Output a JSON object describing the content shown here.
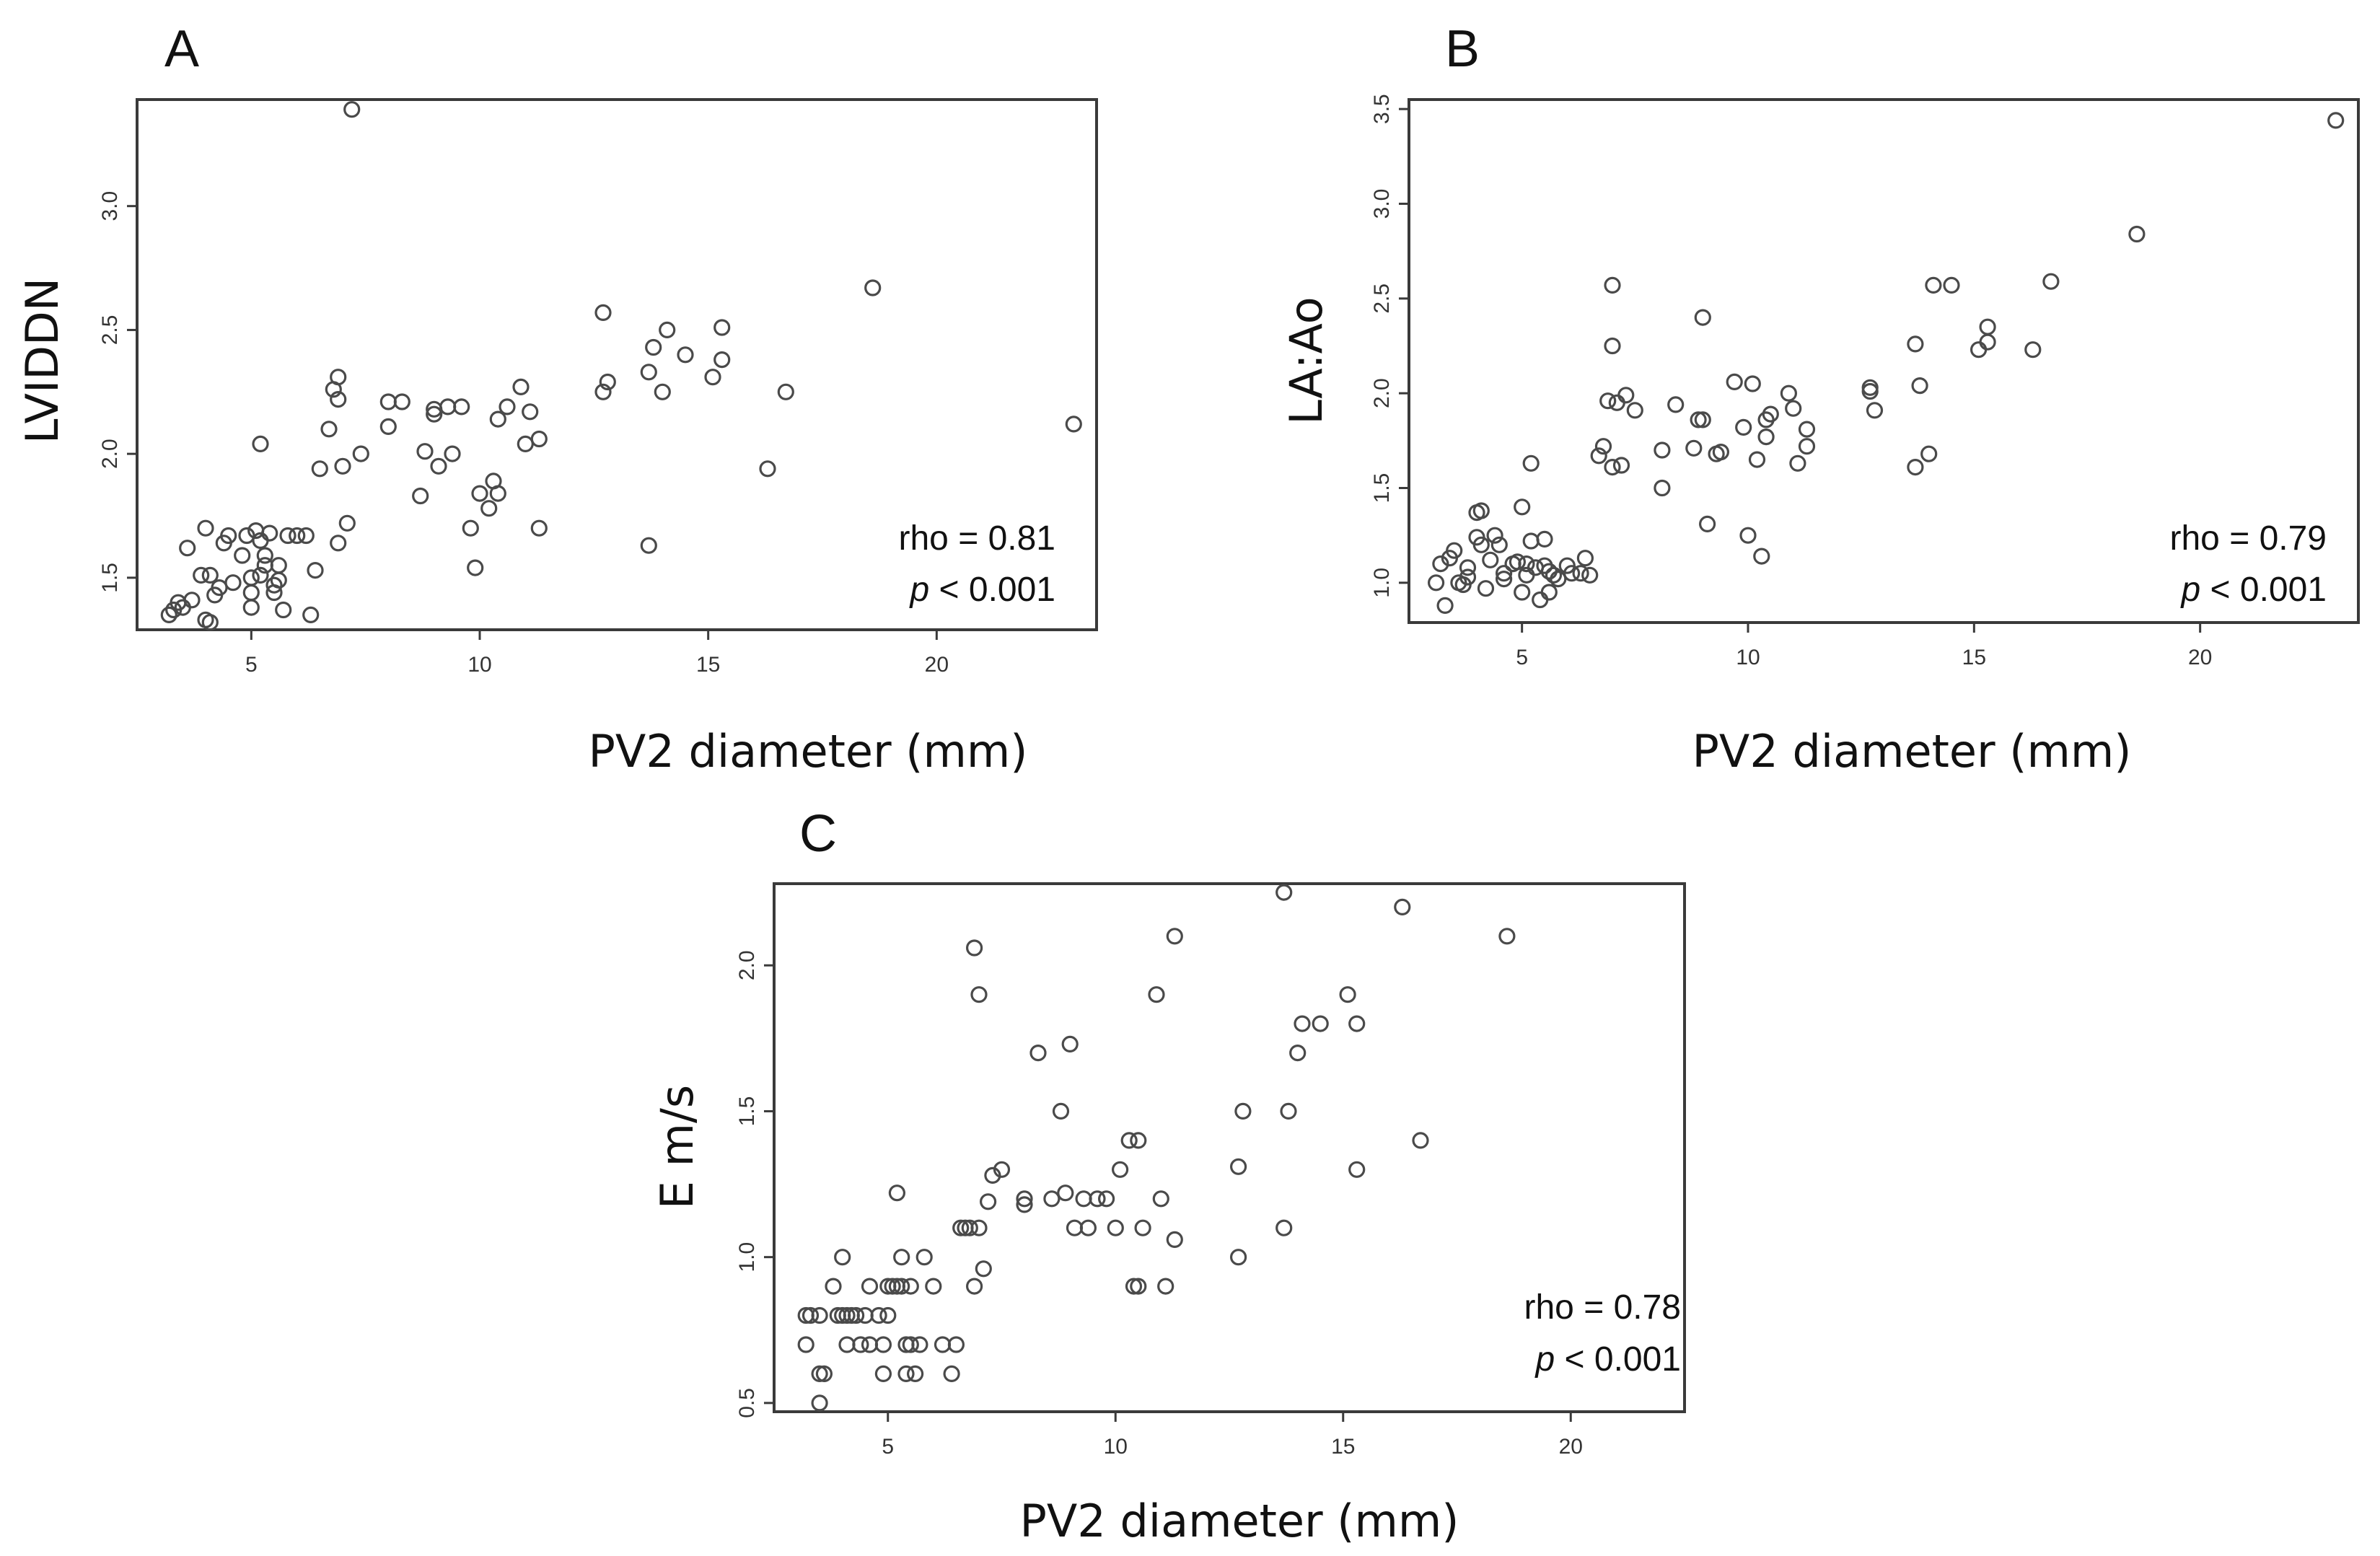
{
  "chart_data": [
    {
      "type": "scatter",
      "panel_label": "A",
      "xlabel": "PV2 diameter (mm)",
      "ylabel": "LVIDDN",
      "xlim": [
        2.5,
        23.5
      ],
      "ylim": [
        1.29,
        3.43
      ],
      "xticks": [
        5,
        10,
        15,
        20
      ],
      "yticks": [
        1.5,
        2.0,
        2.5,
        3.0
      ],
      "ytick_labels": [
        "1.5",
        "2.0",
        "2.5",
        "3.0"
      ],
      "annotation": {
        "rho": "rho = 0.81",
        "p_symbol": "p",
        "p_rest": " < 0.001"
      },
      "points": [
        [
          3.2,
          1.35
        ],
        [
          3.3,
          1.37
        ],
        [
          3.4,
          1.4
        ],
        [
          3.5,
          1.38
        ],
        [
          3.7,
          1.41
        ],
        [
          3.6,
          1.62
        ],
        [
          3.9,
          1.51
        ],
        [
          4.0,
          1.33
        ],
        [
          4.1,
          1.32
        ],
        [
          4.0,
          1.7
        ],
        [
          4.1,
          1.51
        ],
        [
          4.2,
          1.43
        ],
        [
          4.3,
          1.46
        ],
        [
          4.4,
          1.64
        ],
        [
          4.5,
          1.67
        ],
        [
          4.6,
          1.48
        ],
        [
          4.8,
          1.59
        ],
        [
          4.9,
          1.67
        ],
        [
          5.0,
          1.38
        ],
        [
          5.0,
          1.44
        ],
        [
          5.0,
          1.5
        ],
        [
          5.1,
          1.69
        ],
        [
          5.2,
          1.65
        ],
        [
          5.2,
          1.51
        ],
        [
          5.3,
          1.59
        ],
        [
          5.3,
          1.55
        ],
        [
          5.4,
          1.68
        ],
        [
          5.5,
          1.47
        ],
        [
          5.5,
          1.44
        ],
        [
          5.6,
          1.49
        ],
        [
          5.6,
          1.55
        ],
        [
          5.7,
          1.37
        ],
        [
          5.8,
          1.67
        ],
        [
          6.0,
          1.67
        ],
        [
          6.2,
          1.67
        ],
        [
          6.3,
          1.35
        ],
        [
          6.4,
          1.53
        ],
        [
          6.5,
          1.94
        ],
        [
          6.7,
          2.1
        ],
        [
          6.8,
          2.26
        ],
        [
          6.9,
          2.31
        ],
        [
          6.9,
          2.22
        ],
        [
          6.9,
          1.64
        ],
        [
          7.0,
          1.95
        ],
        [
          7.1,
          1.72
        ],
        [
          7.2,
          3.39
        ],
        [
          5.2,
          2.04
        ],
        [
          7.4,
          2.0
        ],
        [
          8.0,
          2.11
        ],
        [
          8.0,
          2.21
        ],
        [
          8.3,
          2.21
        ],
        [
          8.7,
          1.83
        ],
        [
          8.8,
          2.01
        ],
        [
          9.0,
          2.16
        ],
        [
          9.0,
          2.18
        ],
        [
          9.1,
          1.95
        ],
        [
          9.3,
          2.19
        ],
        [
          9.4,
          2.0
        ],
        [
          9.6,
          2.19
        ],
        [
          9.8,
          1.7
        ],
        [
          9.9,
          1.54
        ],
        [
          10.0,
          1.84
        ],
        [
          10.2,
          1.78
        ],
        [
          10.3,
          1.89
        ],
        [
          10.4,
          2.14
        ],
        [
          10.4,
          1.84
        ],
        [
          10.6,
          2.19
        ],
        [
          10.9,
          2.27
        ],
        [
          11.0,
          2.04
        ],
        [
          11.1,
          2.17
        ],
        [
          11.3,
          2.06
        ],
        [
          11.3,
          1.7
        ],
        [
          12.7,
          2.25
        ],
        [
          12.7,
          2.57
        ],
        [
          12.8,
          2.29
        ],
        [
          13.7,
          1.63
        ],
        [
          13.7,
          2.33
        ],
        [
          13.8,
          2.43
        ],
        [
          14.0,
          2.25
        ],
        [
          14.1,
          2.5
        ],
        [
          14.5,
          2.4
        ],
        [
          15.1,
          2.31
        ],
        [
          15.3,
          2.51
        ],
        [
          15.3,
          2.38
        ],
        [
          16.3,
          1.94
        ],
        [
          16.7,
          2.25
        ],
        [
          18.6,
          2.67
        ],
        [
          23.0,
          2.12
        ]
      ]
    },
    {
      "type": "scatter",
      "panel_label": "B",
      "xlabel": "PV2 diameter (mm)",
      "ylabel": "LA:Ao",
      "xlim": [
        2.5,
        23.5
      ],
      "ylim": [
        0.79,
        3.55
      ],
      "xticks": [
        5,
        10,
        15,
        20
      ],
      "yticks": [
        1.0,
        1.5,
        2.0,
        2.5,
        3.0,
        3.5
      ],
      "ytick_labels": [
        "1.0",
        "1.5",
        "2.0",
        "2.5",
        "3.0",
        "3.5"
      ],
      "annotation": {
        "rho": "rho = 0.79",
        "p_symbol": "p",
        "p_rest": " < 0.001"
      },
      "points": [
        [
          3.1,
          1.0
        ],
        [
          3.2,
          1.1
        ],
        [
          3.3,
          0.88
        ],
        [
          3.4,
          1.13
        ],
        [
          3.5,
          1.17
        ],
        [
          3.6,
          1.0
        ],
        [
          3.7,
          0.99
        ],
        [
          3.8,
          1.03
        ],
        [
          3.8,
          1.08
        ],
        [
          4.0,
          1.24
        ],
        [
          4.0,
          1.37
        ],
        [
          4.1,
          1.38
        ],
        [
          4.1,
          1.2
        ],
        [
          4.2,
          0.97
        ],
        [
          4.3,
          1.12
        ],
        [
          4.4,
          1.25
        ],
        [
          4.5,
          1.2
        ],
        [
          4.6,
          1.05
        ],
        [
          4.6,
          1.02
        ],
        [
          4.8,
          1.1
        ],
        [
          4.9,
          1.11
        ],
        [
          5.0,
          0.95
        ],
        [
          5.0,
          1.4
        ],
        [
          5.1,
          1.04
        ],
        [
          5.1,
          1.1
        ],
        [
          5.2,
          1.22
        ],
        [
          5.2,
          1.63
        ],
        [
          5.3,
          1.08
        ],
        [
          5.4,
          0.91
        ],
        [
          5.5,
          1.09
        ],
        [
          5.5,
          1.23
        ],
        [
          5.6,
          1.06
        ],
        [
          5.6,
          0.95
        ],
        [
          5.7,
          1.04
        ],
        [
          5.8,
          1.02
        ],
        [
          6.0,
          1.09
        ],
        [
          6.1,
          1.05
        ],
        [
          6.3,
          1.05
        ],
        [
          6.4,
          1.13
        ],
        [
          6.5,
          1.04
        ],
        [
          6.7,
          1.67
        ],
        [
          6.8,
          1.72
        ],
        [
          6.9,
          1.96
        ],
        [
          7.0,
          2.25
        ],
        [
          7.0,
          2.57
        ],
        [
          7.0,
          1.61
        ],
        [
          7.1,
          1.95
        ],
        [
          7.2,
          1.62
        ],
        [
          7.3,
          1.99
        ],
        [
          7.5,
          1.91
        ],
        [
          8.1,
          1.7
        ],
        [
          8.1,
          1.5
        ],
        [
          8.4,
          1.94
        ],
        [
          8.8,
          1.71
        ],
        [
          8.9,
          1.86
        ],
        [
          9.0,
          2.4
        ],
        [
          9.0,
          1.86
        ],
        [
          9.1,
          1.31
        ],
        [
          9.3,
          1.68
        ],
        [
          9.4,
          1.69
        ],
        [
          9.7,
          2.06
        ],
        [
          9.9,
          1.82
        ],
        [
          10.0,
          1.25
        ],
        [
          10.1,
          2.05
        ],
        [
          10.2,
          1.65
        ],
        [
          10.3,
          1.14
        ],
        [
          10.4,
          1.86
        ],
        [
          10.4,
          1.77
        ],
        [
          10.5,
          1.89
        ],
        [
          10.9,
          2.0
        ],
        [
          11.0,
          1.92
        ],
        [
          11.1,
          1.63
        ],
        [
          11.3,
          1.72
        ],
        [
          11.3,
          1.81
        ],
        [
          12.7,
          2.03
        ],
        [
          12.7,
          2.01
        ],
        [
          12.8,
          1.91
        ],
        [
          13.7,
          1.61
        ],
        [
          13.7,
          2.26
        ],
        [
          13.8,
          2.04
        ],
        [
          14.0,
          1.68
        ],
        [
          14.1,
          2.57
        ],
        [
          14.5,
          2.57
        ],
        [
          15.1,
          2.23
        ],
        [
          15.3,
          2.35
        ],
        [
          15.3,
          2.27
        ],
        [
          16.3,
          2.23
        ],
        [
          16.7,
          2.59
        ],
        [
          18.6,
          2.84
        ],
        [
          23.0,
          3.44
        ]
      ]
    },
    {
      "type": "scatter",
      "panel_label": "C",
      "xlabel": "PV2 diameter (mm)",
      "ylabel": "E m/s",
      "xlim": [
        2.5,
        22.5
      ],
      "ylim": [
        0.47,
        2.28
      ],
      "xticks": [
        5,
        10,
        15,
        20
      ],
      "yticks": [
        0.5,
        1.0,
        1.5,
        2.0
      ],
      "ytick_labels": [
        "0.5",
        "1.0",
        "1.5",
        "2.0"
      ],
      "annotation": {
        "rho": "rho = 0.78",
        "p_symbol": "p",
        "p_rest": " < 0.001"
      },
      "points": [
        [
          3.2,
          0.7
        ],
        [
          3.2,
          0.8
        ],
        [
          3.3,
          0.8
        ],
        [
          3.5,
          0.8
        ],
        [
          3.5,
          0.6
        ],
        [
          3.5,
          0.5
        ],
        [
          3.6,
          0.6
        ],
        [
          3.8,
          0.9
        ],
        [
          3.9,
          0.8
        ],
        [
          4.0,
          1.0
        ],
        [
          4.0,
          0.8
        ],
        [
          4.1,
          0.7
        ],
        [
          4.1,
          0.8
        ],
        [
          4.2,
          0.8
        ],
        [
          4.3,
          0.8
        ],
        [
          4.4,
          0.7
        ],
        [
          4.5,
          0.8
        ],
        [
          4.6,
          0.7
        ],
        [
          4.6,
          0.9
        ],
        [
          4.8,
          0.8
        ],
        [
          4.9,
          0.7
        ],
        [
          4.9,
          0.6
        ],
        [
          5.0,
          0.9
        ],
        [
          5.0,
          0.8
        ],
        [
          5.1,
          0.9
        ],
        [
          5.2,
          1.22
        ],
        [
          5.2,
          0.9
        ],
        [
          5.3,
          0.9
        ],
        [
          5.3,
          1.0
        ],
        [
          5.4,
          0.7
        ],
        [
          5.4,
          0.6
        ],
        [
          5.5,
          0.9
        ],
        [
          5.5,
          0.7
        ],
        [
          5.6,
          0.6
        ],
        [
          5.7,
          0.7
        ],
        [
          5.8,
          1.0
        ],
        [
          6.0,
          0.9
        ],
        [
          6.2,
          0.7
        ],
        [
          6.4,
          0.6
        ],
        [
          6.5,
          0.7
        ],
        [
          6.6,
          1.1
        ],
        [
          6.7,
          1.1
        ],
        [
          6.8,
          1.1
        ],
        [
          6.9,
          2.06
        ],
        [
          6.9,
          0.9
        ],
        [
          7.0,
          1.9
        ],
        [
          7.0,
          1.1
        ],
        [
          7.1,
          0.96
        ],
        [
          7.2,
          1.19
        ],
        [
          7.3,
          1.28
        ],
        [
          7.5,
          1.3
        ],
        [
          8.0,
          1.2
        ],
        [
          8.0,
          1.18
        ],
        [
          8.3,
          1.7
        ],
        [
          8.6,
          1.2
        ],
        [
          8.8,
          1.5
        ],
        [
          8.9,
          1.22
        ],
        [
          9.0,
          1.73
        ],
        [
          9.1,
          1.1
        ],
        [
          9.3,
          1.2
        ],
        [
          9.4,
          1.1
        ],
        [
          9.6,
          1.2
        ],
        [
          9.8,
          1.2
        ],
        [
          10.0,
          1.1
        ],
        [
          10.1,
          1.3
        ],
        [
          10.3,
          1.4
        ],
        [
          10.4,
          0.9
        ],
        [
          10.5,
          1.4
        ],
        [
          10.6,
          1.1
        ],
        [
          10.5,
          0.9
        ],
        [
          10.9,
          1.9
        ],
        [
          11.0,
          1.2
        ],
        [
          11.1,
          0.9
        ],
        [
          11.3,
          2.1
        ],
        [
          11.3,
          1.06
        ],
        [
          12.7,
          1.31
        ],
        [
          12.7,
          1.0
        ],
        [
          12.8,
          1.5
        ],
        [
          13.7,
          2.25
        ],
        [
          13.7,
          1.1
        ],
        [
          13.8,
          1.5
        ],
        [
          14.0,
          1.7
        ],
        [
          14.1,
          1.8
        ],
        [
          14.5,
          1.8
        ],
        [
          15.1,
          1.9
        ],
        [
          15.3,
          1.3
        ],
        [
          15.3,
          1.8
        ],
        [
          16.3,
          2.2
        ],
        [
          16.7,
          1.4
        ],
        [
          18.6,
          2.1
        ]
      ]
    }
  ]
}
